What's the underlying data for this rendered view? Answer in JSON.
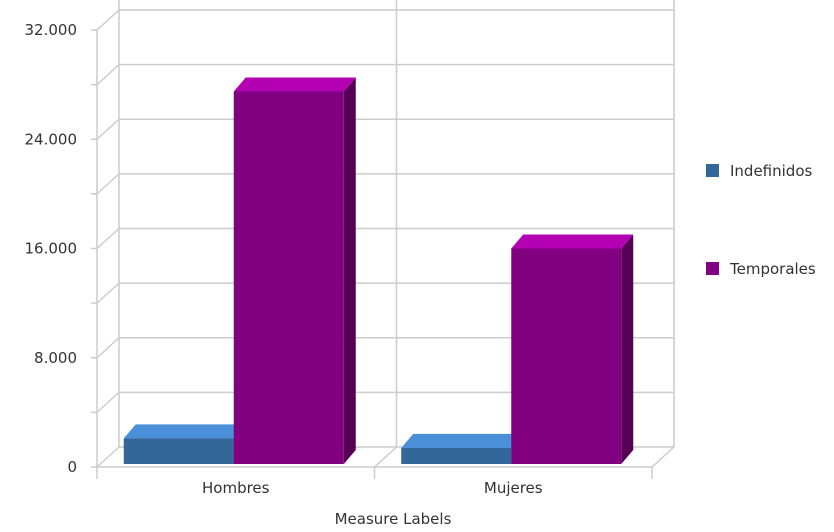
{
  "chart_data": {
    "type": "bar",
    "categories": [
      "Hombres",
      "Mujeres"
    ],
    "series": [
      {
        "name": "Indefinidos",
        "values": [
          2100,
          1400
        ],
        "color": "#336699",
        "top_color": "#4a90d9",
        "side_color": "#1f4f7a"
      },
      {
        "name": "Temporales",
        "values": [
          27500,
          16000
        ],
        "color": "#800080",
        "top_color": "#b300b3",
        "side_color": "#550055"
      }
    ],
    "xlabel": "Measure Labels",
    "ylabel": "",
    "ylim": [
      0,
      32000
    ],
    "yticks": [
      "0",
      "8.000",
      "16.000",
      "24.000",
      "32.000"
    ],
    "ytick_values": [
      0,
      8000,
      16000,
      24000,
      32000
    ],
    "grid": true,
    "legend_position": "right",
    "three_d": true
  }
}
